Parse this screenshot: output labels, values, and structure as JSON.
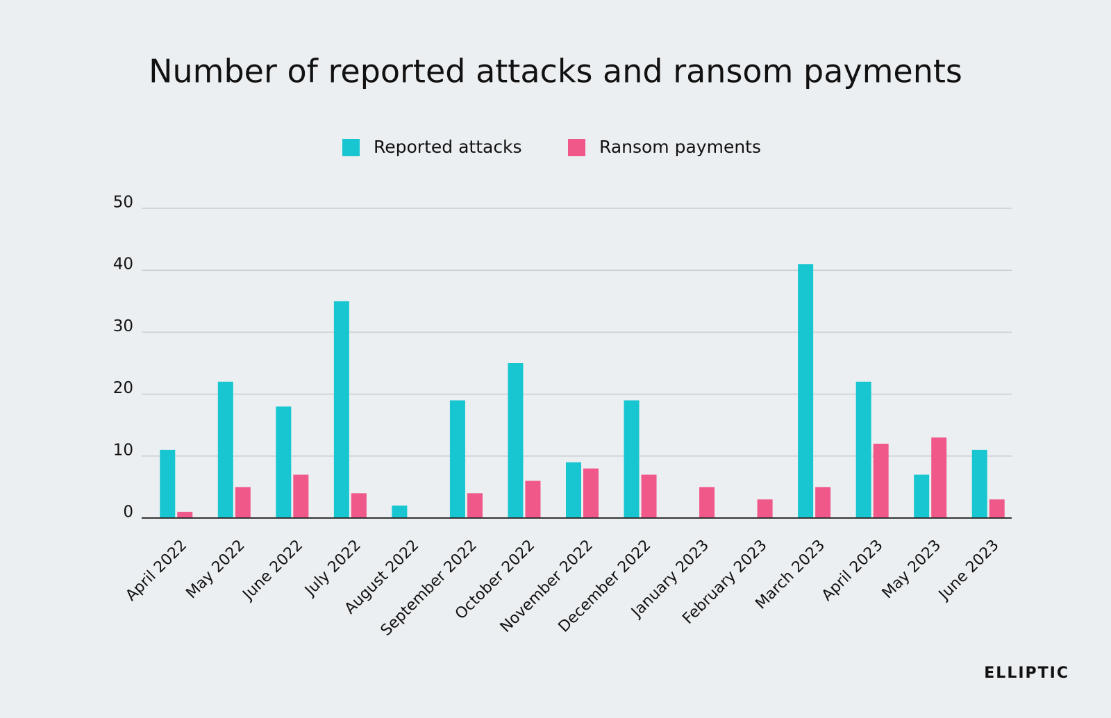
{
  "chart_data": {
    "type": "bar",
    "title": "Number of reported attacks and ransom payments",
    "categories": [
      "April 2022",
      "May 2022",
      "June 2022",
      "July 2022",
      "August 2022",
      "September 2022",
      "October 2022",
      "November 2022",
      "December 2022",
      "January 2023",
      "February 2023",
      "March 2023",
      "April 2023",
      "May 2023",
      "June 2023"
    ],
    "series": [
      {
        "name": "Reported attacks",
        "color": "#17c6d0",
        "values": [
          11,
          22,
          18,
          35,
          2,
          19,
          25,
          9,
          19,
          0,
          0,
          41,
          22,
          7,
          11
        ]
      },
      {
        "name": "Ransom payments",
        "color": "#f0588a",
        "values": [
          1,
          5,
          7,
          4,
          0,
          4,
          6,
          8,
          7,
          5,
          3,
          5,
          12,
          13,
          3
        ]
      }
    ],
    "ylim": [
      0,
      50
    ],
    "yticks": [
      0,
      10,
      20,
      30,
      40,
      50
    ],
    "grid": true,
    "legend": "top"
  },
  "logo": "ELLIPTIC"
}
